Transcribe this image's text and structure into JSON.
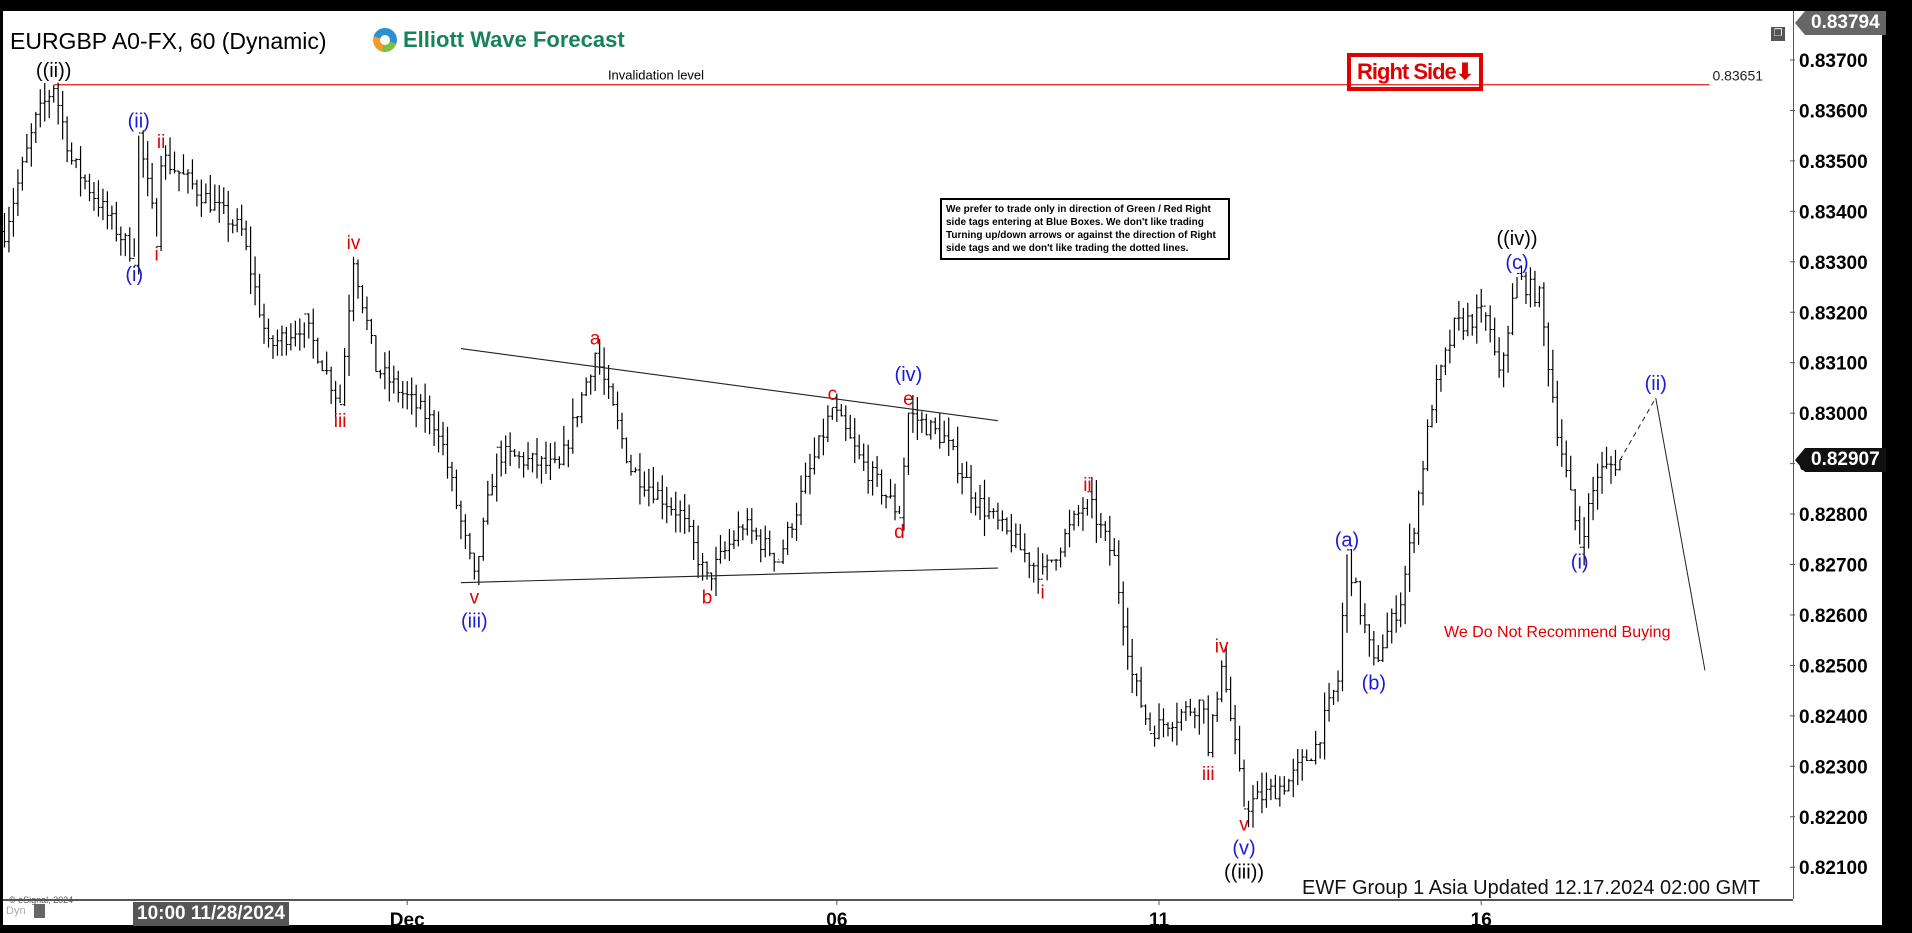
{
  "header": {
    "title": "EURGBP A0-FX, 60 (Dynamic)",
    "logo_text": "Elliott Wave Forecast"
  },
  "annotations": {
    "right_side": "Right Side",
    "right_side_arrow": "⬇",
    "note": "We prefer to trade only in direction of Green / Red Right side tags entering at Blue Boxes. We don't like trading Turning up/down arrows or against the direction of Right side tags and we don't like trading the dotted lines.",
    "no_recommend": "We Do Not Recommend Buying",
    "updated": "EWF Group 1 Asia Updated 12.17.2024 02:00 GMT",
    "copyright": "© eSignal, 2024",
    "dyn": "Dyn"
  },
  "price_tags": {
    "top": "0.83794",
    "last": "0.82907"
  },
  "time_cursor": "10:00 11/28/2024",
  "colors": {
    "red": "#e00000",
    "blue": "#1a1ad6",
    "black": "#000000",
    "bars": "#000000"
  },
  "chart_data": {
    "type": "ohlc",
    "symbol": "EURGBP A0-FX",
    "interval": "60",
    "ylim": [
      0.8205,
      0.8381
    ],
    "y_ticks": [
      "0.83700",
      "0.83600",
      "0.83500",
      "0.83400",
      "0.83300",
      "0.83200",
      "0.83100",
      "0.83000",
      "0.82900",
      "0.82800",
      "0.82700",
      "0.82600",
      "0.82500",
      "0.82400",
      "0.82300",
      "0.82200",
      "0.82100"
    ],
    "x_ticks": [
      {
        "label": "Dec",
        "time": "2024-12-02 00:00"
      },
      {
        "label": "06",
        "time": "2024-12-06 00:00"
      },
      {
        "label": "11",
        "time": "2024-12-11 00:00"
      },
      {
        "label": "16",
        "time": "2024-12-16 00:00"
      }
    ],
    "price_path": [
      [
        "2024-11-26 06:00",
        0.8336
      ],
      [
        "2024-11-26 13:00",
        0.8358
      ],
      [
        "2024-11-26 17:00",
        0.8365
      ],
      [
        "2024-11-26 21:00",
        0.835
      ],
      [
        "2024-11-27 11:00",
        0.8331
      ],
      [
        "2024-11-27 12:00",
        0.8355
      ],
      [
        "2024-11-27 16:00",
        0.8335
      ],
      [
        "2024-11-27 17:00",
        0.8351
      ],
      [
        "2024-11-28 11:00",
        0.8336
      ],
      [
        "2024-11-28 17:00",
        0.8313
      ],
      [
        "2024-11-29 01:00",
        0.8318
      ],
      [
        "2024-11-29 09:00",
        0.8302
      ],
      [
        "2024-11-29 12:00",
        0.8331
      ],
      [
        "2024-11-29 17:00",
        0.8309
      ],
      [
        "2024-12-02 07:00",
        0.8297
      ],
      [
        "2024-12-02 15:00",
        0.8267
      ],
      [
        "2024-12-02 20:00",
        0.8292
      ],
      [
        "2024-12-03 10:00",
        0.8289
      ],
      [
        "2024-12-03 18:00",
        0.8312
      ],
      [
        "2024-12-04 02:00",
        0.8289
      ],
      [
        "2024-12-04 13:00",
        0.828
      ],
      [
        "2024-12-04 19:00",
        0.8267
      ],
      [
        "2024-12-05 03:00",
        0.8278
      ],
      [
        "2024-12-05 11:00",
        0.8271
      ],
      [
        "2024-12-05 23:00",
        0.8301
      ],
      [
        "2024-12-06 05:00",
        0.8291
      ],
      [
        "2024-12-06 14:00",
        0.828
      ],
      [
        "2024-12-06 16:00",
        0.83
      ],
      [
        "2024-12-09 00:00",
        0.8295
      ],
      [
        "2024-12-09 07:00",
        0.8283
      ],
      [
        "2024-12-09 22:00",
        0.8268
      ],
      [
        "2024-12-10 08:00",
        0.8283
      ],
      [
        "2024-12-10 14:00",
        0.8271
      ],
      [
        "2024-12-10 18:00",
        0.8248
      ],
      [
        "2024-12-10 22:00",
        0.8237
      ],
      [
        "2024-12-11 10:00",
        0.8243
      ],
      [
        "2024-12-11 11:00",
        0.8232
      ],
      [
        "2024-12-11 14:00",
        0.8251
      ],
      [
        "2024-12-11 19:00",
        0.8222
      ],
      [
        "2024-12-12 05:00",
        0.8227
      ],
      [
        "2024-12-12 11:00",
        0.8234
      ],
      [
        "2024-12-12 16:00",
        0.8247
      ],
      [
        "2024-12-12 18:00",
        0.8272
      ],
      [
        "2024-12-13 00:00",
        0.825
      ],
      [
        "2024-12-13 06:00",
        0.8263
      ],
      [
        "2024-12-13 09:00",
        0.8278
      ],
      [
        "2024-12-13 13:00",
        0.8302
      ],
      [
        "2024-12-13 18:00",
        0.8317
      ],
      [
        "2024-12-16 01:00",
        0.832
      ],
      [
        "2024-12-16 04:00",
        0.8307
      ],
      [
        "2024-12-16 08:00",
        0.8327
      ],
      [
        "2024-12-16 13:00",
        0.8323
      ],
      [
        "2024-12-16 17:00",
        0.8297
      ],
      [
        "2024-12-16 22:00",
        0.8274
      ],
      [
        "2024-12-17 02:00",
        0.8288
      ],
      [
        "2024-12-17 07:00",
        0.82907
      ]
    ],
    "invalidation": {
      "label": "Invalidation level",
      "price": 0.83651,
      "price_label": "0.83651",
      "from": "2024-11-26 17:00",
      "to": "2024-12-18 03:00"
    },
    "trend_lines": [
      {
        "from": [
          "2024-12-02 12:00",
          0.83128
        ],
        "to": [
          "2024-12-09 12:00",
          0.82985
        ]
      },
      {
        "from": [
          "2024-12-02 12:00",
          0.82664
        ],
        "to": [
          "2024-12-09 12:00",
          0.82693
        ]
      }
    ],
    "projection": {
      "dashed": [
        [
          "2024-12-17 07:00",
          0.82907
        ],
        [
          "2024-12-17 15:00",
          0.8303
        ]
      ],
      "solid": [
        [
          "2024-12-17 15:00",
          0.8303
        ],
        [
          "2024-12-18 02:00",
          0.8249
        ]
      ]
    },
    "wave_labels": [
      {
        "text": "((ii))",
        "color": "black",
        "time": "2024-11-26 17:00",
        "price": 0.8365,
        "pos": "above",
        "stack": 0
      },
      {
        "text": "(ii)",
        "color": "blue",
        "time": "2024-11-27 12:00",
        "price": 0.8355,
        "pos": "above",
        "stack": 0
      },
      {
        "text": "ii",
        "color": "red",
        "time": "2024-11-27 17:00",
        "price": 0.8351,
        "pos": "above",
        "stack": 0
      },
      {
        "text": "i",
        "color": "red",
        "time": "2024-11-27 16:00",
        "price": 0.8335,
        "pos": "below",
        "stack": 0
      },
      {
        "text": "(i)",
        "color": "blue",
        "time": "2024-11-27 11:00",
        "price": 0.8331,
        "pos": "below",
        "stack": 0
      },
      {
        "text": "iv",
        "color": "red",
        "time": "2024-11-29 12:00",
        "price": 0.8331,
        "pos": "above",
        "stack": 0
      },
      {
        "text": "iii",
        "color": "red",
        "time": "2024-11-29 09:00",
        "price": 0.8302,
        "pos": "below",
        "stack": 0
      },
      {
        "text": "v",
        "color": "red",
        "time": "2024-12-02 15:00",
        "price": 0.8267,
        "pos": "below",
        "stack": 0
      },
      {
        "text": "(iii)",
        "color": "blue",
        "time": "2024-12-02 15:00",
        "price": 0.8267,
        "pos": "below",
        "stack": 1
      },
      {
        "text": "a",
        "color": "red",
        "time": "2024-12-03 18:00",
        "price": 0.8312,
        "pos": "above",
        "stack": 0
      },
      {
        "text": "b",
        "color": "red",
        "time": "2024-12-04 19:00",
        "price": 0.8267,
        "pos": "below",
        "stack": 0
      },
      {
        "text": "c",
        "color": "red",
        "time": "2024-12-05 23:00",
        "price": 0.8301,
        "pos": "above",
        "stack": 0
      },
      {
        "text": "d",
        "color": "red",
        "time": "2024-12-06 14:00",
        "price": 0.828,
        "pos": "below",
        "stack": 0
      },
      {
        "text": "e",
        "color": "red",
        "time": "2024-12-06 16:00",
        "price": 0.83,
        "pos": "above",
        "stack": 0
      },
      {
        "text": "(iv)",
        "color": "blue",
        "time": "2024-12-06 16:00",
        "price": 0.83,
        "pos": "above",
        "stack": 1
      },
      {
        "text": "i",
        "color": "red",
        "time": "2024-12-09 22:00",
        "price": 0.8268,
        "pos": "below",
        "stack": 0
      },
      {
        "text": "ii",
        "color": "red",
        "time": "2024-12-10 08:00",
        "price": 0.8283,
        "pos": "above",
        "stack": 0
      },
      {
        "text": "iii",
        "color": "red",
        "time": "2024-12-11 11:00",
        "price": 0.8232,
        "pos": "below",
        "stack": 0
      },
      {
        "text": "iv",
        "color": "red",
        "time": "2024-12-11 14:00",
        "price": 0.8251,
        "pos": "above",
        "stack": 0
      },
      {
        "text": "v",
        "color": "red",
        "time": "2024-12-11 19:00",
        "price": 0.8222,
        "pos": "below",
        "stack": 0
      },
      {
        "text": "(v)",
        "color": "blue",
        "time": "2024-12-11 19:00",
        "price": 0.8222,
        "pos": "below",
        "stack": 1
      },
      {
        "text": "((iii))",
        "color": "black",
        "time": "2024-12-11 19:00",
        "price": 0.8222,
        "pos": "below",
        "stack": 2
      },
      {
        "text": "(a)",
        "color": "blue",
        "time": "2024-12-12 18:00",
        "price": 0.8272,
        "pos": "above",
        "stack": 0
      },
      {
        "text": "(b)",
        "color": "blue",
        "time": "2024-12-13 00:00",
        "price": 0.825,
        "pos": "below",
        "stack": 0
      },
      {
        "text": "(c)",
        "color": "blue",
        "time": "2024-12-16 08:00",
        "price": 0.8327,
        "pos": "above",
        "stack": 0
      },
      {
        "text": "((iv))",
        "color": "black",
        "time": "2024-12-16 08:00",
        "price": 0.8327,
        "pos": "above",
        "stack": 1
      },
      {
        "text": "(i)",
        "color": "blue",
        "time": "2024-12-16 22:00",
        "price": 0.8274,
        "pos": "below",
        "stack": 0
      },
      {
        "text": "(ii)",
        "color": "blue",
        "time": "2024-12-17 15:00",
        "price": 0.8303,
        "pos": "above",
        "stack": 0
      }
    ]
  }
}
